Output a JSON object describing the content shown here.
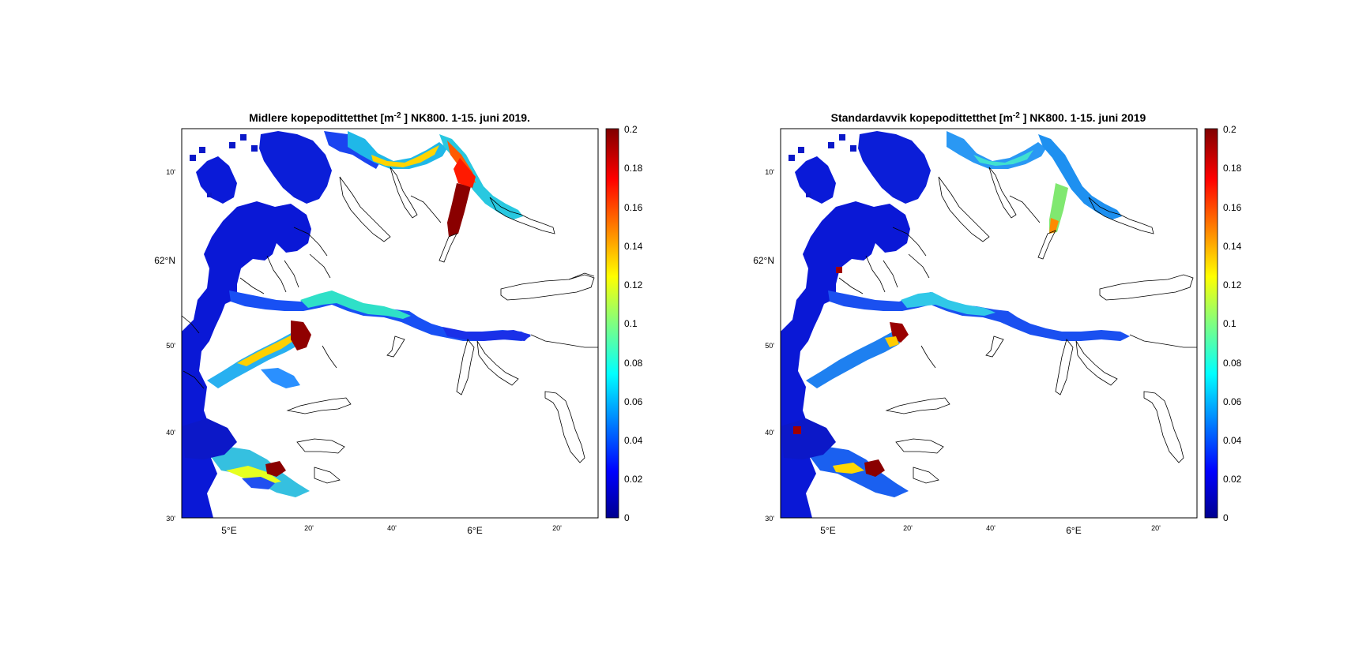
{
  "figure": {
    "panels": [
      {
        "title_pre": "Midlere kopepodittetthet [m",
        "title_sup": "-2",
        "title_post": " ] NK800. 1-15. juni 2019.",
        "lat_ticks": [
          "10'",
          "62°N",
          "50'",
          "40'",
          "30'"
        ],
        "lon_ticks": [
          "5°E",
          "20'",
          "40'",
          "6°E",
          "20'"
        ],
        "colorbar_ticks": [
          "0.2",
          "0.18",
          "0.16",
          "0.14",
          "0.12",
          "0.1",
          "0.08",
          "0.06",
          "0.04",
          "0.02",
          "0"
        ]
      },
      {
        "title_pre": "Standardavvik kopepodittetthet [m",
        "title_sup": "-2",
        "title_post": " ] NK800. 1-15. juni 2019",
        "lat_ticks": [
          "10'",
          "62°N",
          "50'",
          "40'",
          "30'"
        ],
        "lon_ticks": [
          "5°E",
          "20'",
          "40'",
          "6°E",
          "20'"
        ],
        "colorbar_ticks": [
          "0.2",
          "0.18",
          "0.16",
          "0.14",
          "0.12",
          "0.1",
          "0.08",
          "0.06",
          "0.04",
          "0.02",
          "0"
        ]
      }
    ],
    "colormap": "jet",
    "colorbar_range": [
      0,
      0.2
    ]
  }
}
